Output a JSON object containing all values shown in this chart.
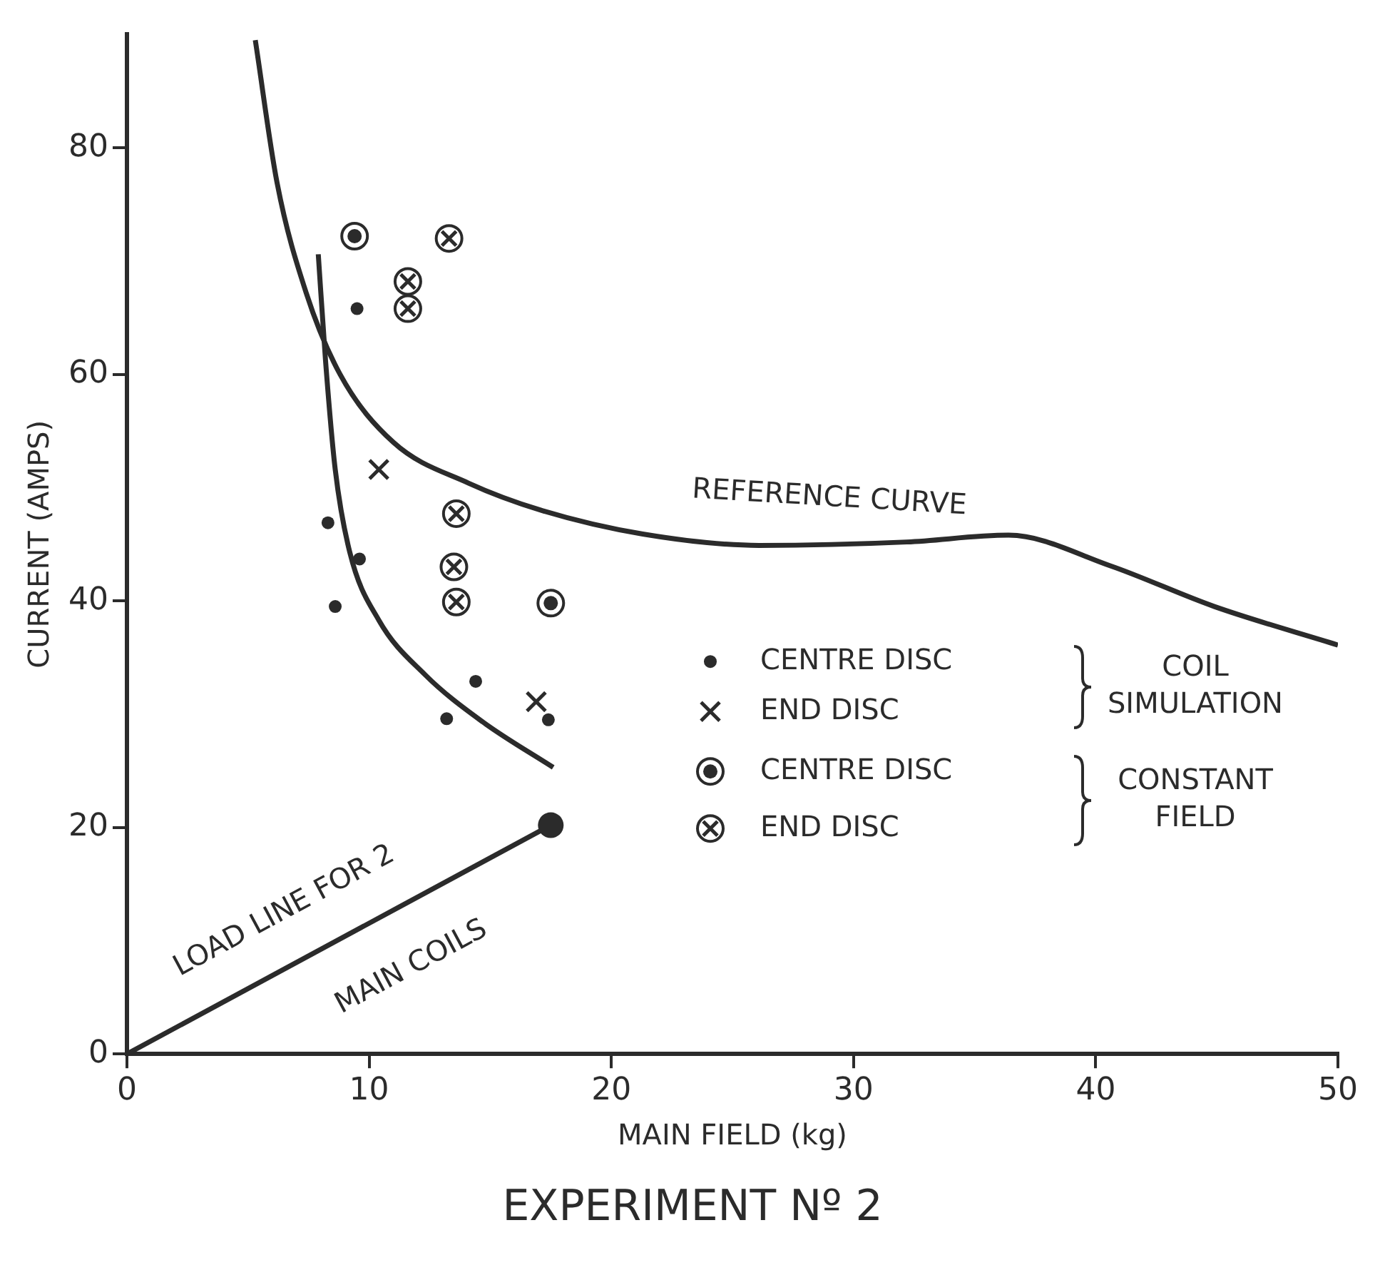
{
  "chart_data": {
    "type": "scatter",
    "title": "EXPERIMENT Nº 2",
    "xlabel": "MAIN FIELD (kg)",
    "ylabel": "CURRENT (AMPS)",
    "xlim": [
      0,
      50
    ],
    "ylim": [
      0,
      90
    ],
    "xticks": [
      0,
      10,
      20,
      30,
      40,
      50
    ],
    "yticks": [
      0,
      20,
      40,
      60,
      80
    ],
    "grid": false,
    "legend": "bottom right",
    "series": [
      {
        "type": "line",
        "color": "#2b2b2b",
        "marker": "none",
        "x": [
          5.3,
          6.2,
          7.4,
          8.8,
          11.0,
          14.1,
          17.1,
          21.3,
          26.1,
          32.2,
          36.4,
          40.6,
          44.9,
          50
        ],
        "values": [
          89.5,
          76.9,
          67.2,
          60.0,
          54.0,
          50.4,
          48.0,
          45.9,
          44.9,
          45.2,
          45.8,
          43.1,
          39.5,
          36.1
        ]
      },
      {
        "type": "line",
        "color": "#2b2b2b",
        "marker": "none",
        "x": [
          7.9,
          8.2,
          8.6,
          9.2,
          10.4,
          12.3,
          14.7,
          17.6
        ],
        "values": [
          70.6,
          61.2,
          51.6,
          44.3,
          38.3,
          33.5,
          29.3,
          25.3
        ]
      },
      {
        "type": "line",
        "color": "#2b2b2b",
        "marker": "none",
        "x": [
          0,
          17.5
        ],
        "values": [
          0,
          20.2
        ]
      },
      {
        "type": "scatter",
        "color": "#2b2b2b",
        "marker": "circle",
        "x": [
          17.5
        ],
        "values": [
          20.2
        ]
      },
      {
        "name": "CENTRE DISC",
        "color": "#2b2b2b",
        "marker": "circle",
        "x": [
          9.5,
          8.3,
          9.6,
          8.6,
          14.4,
          13.2,
          17.4
        ],
        "values": [
          65.8,
          46.9,
          43.7,
          39.5,
          32.9,
          29.6,
          29.5
        ]
      },
      {
        "name": "END DISC",
        "color": "#2b2b2b",
        "marker": "cross",
        "x": [
          10.4,
          16.9
        ],
        "values": [
          51.6,
          31.1
        ]
      },
      {
        "name": "CENTRE DISC",
        "color": "#2b2b2b",
        "marker": "circle",
        "x": [
          9.4,
          17.5
        ],
        "values": [
          72.2,
          39.8
        ]
      },
      {
        "name": "END DISC",
        "color": "#2b2b2b",
        "marker": "circle",
        "x": [
          13.3,
          11.6,
          11.6,
          13.6,
          13.5,
          13.6
        ],
        "values": [
          72.0,
          68.2,
          65.8,
          47.7,
          43.0,
          39.9
        ]
      }
    ],
    "annotations": [
      "REFERENCE CURVE",
      "LOAD LINE FOR 2",
      "MAIN COILS",
      "COIL SIMULATION",
      "CONSTANT FIELD"
    ]
  }
}
